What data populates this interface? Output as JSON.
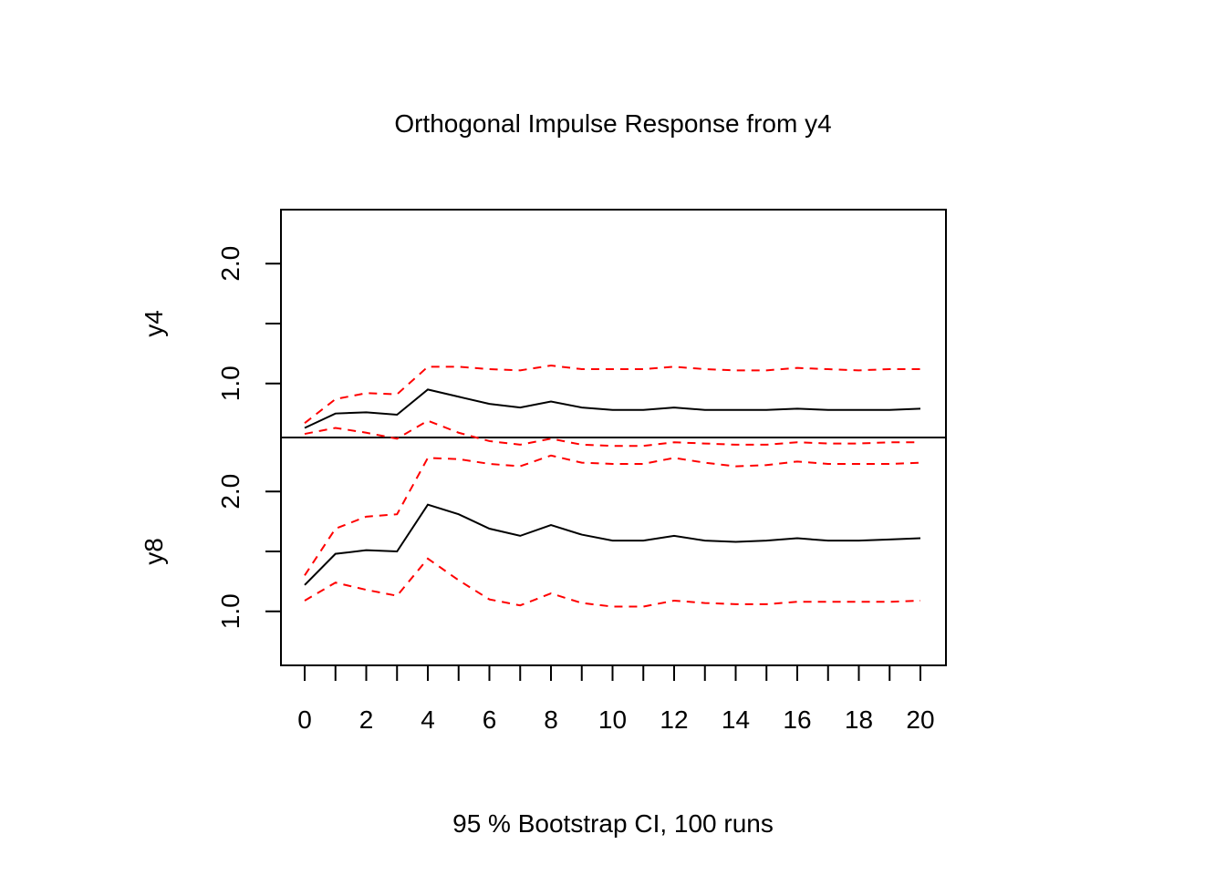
{
  "chart_data": {
    "type": "line",
    "title": "Orthogonal Impulse Response from y4",
    "xlabel": "95 % Bootstrap CI,  100 runs",
    "x": [
      0,
      1,
      2,
      3,
      4,
      5,
      6,
      7,
      8,
      9,
      10,
      11,
      12,
      13,
      14,
      15,
      16,
      17,
      18,
      19,
      20
    ],
    "xticks": [
      "0",
      "2",
      "4",
      "6",
      "8",
      "10",
      "12",
      "14",
      "16",
      "18",
      "20"
    ],
    "xlim": [
      0,
      20
    ],
    "grid": false,
    "legend": "none",
    "colors": {
      "response": "#000000",
      "ci": "#ff0000"
    },
    "panels": [
      {
        "ylabel": "y4",
        "ylim": [
          0.55,
          2.45
        ],
        "yticks": [
          "1.0",
          "2.0"
        ],
        "series": [
          {
            "role": "response",
            "values": [
              0.63,
              0.75,
              0.76,
              0.74,
              0.95,
              0.89,
              0.83,
              0.8,
              0.85,
              0.8,
              0.78,
              0.78,
              0.8,
              0.78,
              0.78,
              0.78,
              0.79,
              0.78,
              0.78,
              0.78,
              0.79
            ]
          },
          {
            "role": "ci_upper",
            "values": [
              0.67,
              0.87,
              0.92,
              0.91,
              1.14,
              1.14,
              1.12,
              1.11,
              1.15,
              1.12,
              1.12,
              1.12,
              1.14,
              1.12,
              1.11,
              1.11,
              1.13,
              1.12,
              1.11,
              1.12,
              1.12
            ]
          },
          {
            "role": "ci_lower",
            "values": [
              0.58,
              0.63,
              0.59,
              0.54,
              0.69,
              0.59,
              0.52,
              0.49,
              0.54,
              0.49,
              0.48,
              0.48,
              0.51,
              0.5,
              0.49,
              0.49,
              0.51,
              0.5,
              0.5,
              0.51,
              0.51
            ]
          }
        ]
      },
      {
        "ylabel": "y8",
        "ylim": [
          0.55,
          2.45
        ],
        "yticks": [
          "1.0",
          "2.0"
        ],
        "series": [
          {
            "role": "response",
            "values": [
              1.22,
              1.48,
              1.51,
              1.5,
              1.89,
              1.81,
              1.69,
              1.63,
              1.72,
              1.64,
              1.59,
              1.59,
              1.63,
              1.59,
              1.58,
              1.59,
              1.61,
              1.59,
              1.59,
              1.6,
              1.61
            ]
          },
          {
            "role": "ci_upper",
            "values": [
              1.3,
              1.69,
              1.79,
              1.81,
              2.28,
              2.27,
              2.23,
              2.21,
              2.3,
              2.24,
              2.23,
              2.23,
              2.28,
              2.24,
              2.21,
              2.22,
              2.25,
              2.23,
              2.23,
              2.23,
              2.24
            ]
          },
          {
            "role": "ci_lower",
            "values": [
              1.09,
              1.24,
              1.18,
              1.13,
              1.44,
              1.26,
              1.1,
              1.05,
              1.15,
              1.07,
              1.04,
              1.04,
              1.09,
              1.07,
              1.06,
              1.06,
              1.08,
              1.08,
              1.08,
              1.08,
              1.09
            ]
          }
        ]
      }
    ]
  }
}
